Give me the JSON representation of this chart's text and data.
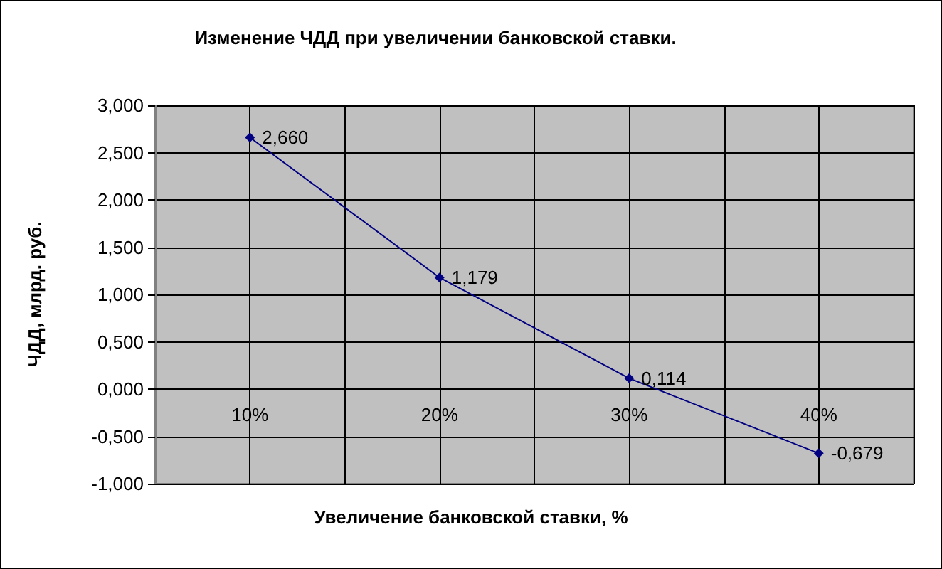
{
  "chart_data": {
    "type": "line",
    "title": "Изменение ЧДД при увеличении банковской ставки.",
    "xlabel": "Увеличение банковской ставки, %",
    "ylabel": "ЧДД, млрд. руб.",
    "categories": [
      "10%",
      "20%",
      "30%",
      "40%"
    ],
    "series": [
      {
        "color": "#000080",
        "values": [
          2.66,
          1.179,
          0.114,
          -0.679
        ],
        "value_labels": [
          "2,660",
          "1,179",
          "0,114",
          "-0,679"
        ]
      }
    ],
    "ylim": [
      -1,
      3
    ],
    "yticks": [
      {
        "value": -1,
        "label": "-1,000"
      },
      {
        "value": -0.5,
        "label": "-0,500"
      },
      {
        "value": 0,
        "label": "0,000"
      },
      {
        "value": 0.5,
        "label": "0,500"
      },
      {
        "value": 1,
        "label": "1,000"
      },
      {
        "value": 1.5,
        "label": "1,500"
      },
      {
        "value": 2,
        "label": "2,000"
      },
      {
        "value": 2.5,
        "label": "2,500"
      },
      {
        "value": 3,
        "label": "3,000"
      }
    ],
    "grid": true,
    "marker": "diamond",
    "line_style": "solid"
  }
}
